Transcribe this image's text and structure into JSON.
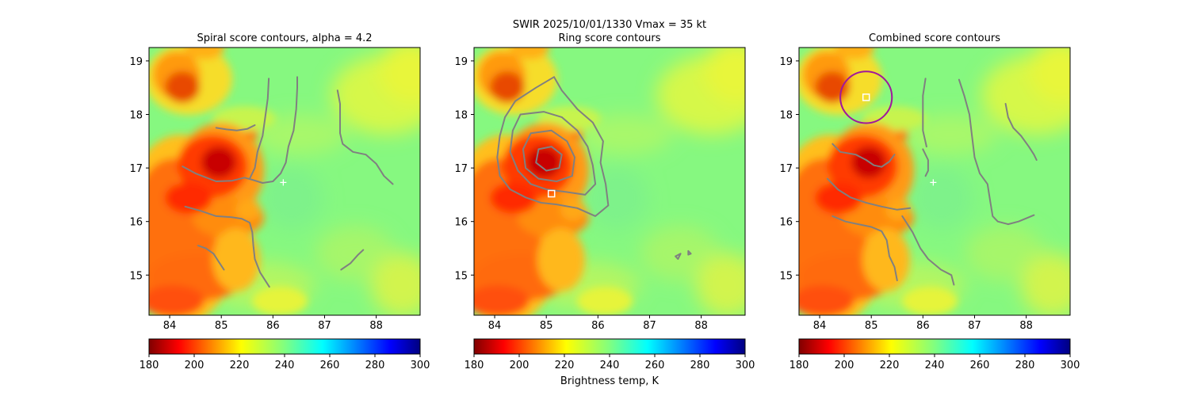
{
  "figure": {
    "suptitle_line": "SWIR  2025/10/01/1330    Vmax = 35 kt",
    "colorbar_label": "Brightness temp, K"
  },
  "chart_data": [
    {
      "type": "heatmap",
      "title": "Spiral score contours, alpha =  4.2",
      "xlim": [
        83.6,
        88.85
      ],
      "ylim": [
        14.25,
        19.25
      ],
      "xticks": [
        84,
        85,
        86,
        87,
        88
      ],
      "yticks": [
        15,
        16,
        17,
        18,
        19
      ],
      "grid": false,
      "colorbar": {
        "orientation": "horizontal",
        "range": [
          180,
          300
        ],
        "ticks": [
          180,
          200,
          220,
          240,
          260,
          280,
          300
        ],
        "colormap": "jet_r"
      },
      "markers": [
        {
          "shape": "plus",
          "lon": 86.2,
          "lat": 16.73,
          "color": "#ffffff"
        }
      ],
      "contours": [
        {
          "color": "#808080",
          "points": [
            [
              84.9,
              17.75
            ],
            [
              85.1,
              17.72
            ],
            [
              85.3,
              17.7
            ],
            [
              85.5,
              17.73
            ],
            [
              85.65,
              17.8
            ]
          ]
        },
        {
          "color": "#808080",
          "points": [
            [
              84.25,
              17.03
            ],
            [
              84.5,
              16.9
            ],
            [
              84.9,
              16.75
            ],
            [
              85.2,
              16.76
            ],
            [
              85.45,
              16.82
            ],
            [
              85.6,
              16.78
            ],
            [
              85.8,
              16.72
            ],
            [
              86.0,
              16.75
            ],
            [
              86.15,
              16.9
            ],
            [
              86.25,
              17.1
            ],
            [
              86.3,
              17.4
            ],
            [
              86.4,
              17.7
            ],
            [
              86.45,
              18.1
            ],
            [
              86.47,
              18.5
            ],
            [
              86.47,
              18.7
            ]
          ]
        },
        {
          "color": "#808080",
          "points": [
            [
              85.55,
              16.8
            ],
            [
              85.65,
              17.0
            ],
            [
              85.7,
              17.3
            ],
            [
              85.8,
              17.6
            ],
            [
              85.85,
              17.95
            ],
            [
              85.9,
              18.3
            ],
            [
              85.92,
              18.67
            ]
          ]
        },
        {
          "color": "#808080",
          "points": [
            [
              84.3,
              16.28
            ],
            [
              84.6,
              16.2
            ],
            [
              84.9,
              16.1
            ],
            [
              85.2,
              16.08
            ],
            [
              85.4,
              16.05
            ],
            [
              85.55,
              15.98
            ],
            [
              85.6,
              15.8
            ],
            [
              85.62,
              15.55
            ],
            [
              85.65,
              15.3
            ],
            [
              85.75,
              15.05
            ],
            [
              85.93,
              14.78
            ]
          ]
        },
        {
          "color": "#808080",
          "points": [
            [
              84.55,
              15.55
            ],
            [
              84.7,
              15.5
            ],
            [
              84.85,
              15.4
            ],
            [
              84.95,
              15.25
            ],
            [
              85.05,
              15.1
            ]
          ]
        },
        {
          "color": "#808080",
          "points": [
            [
              87.25,
              18.45
            ],
            [
              87.3,
              18.2
            ],
            [
              87.3,
              18.0
            ],
            [
              87.3,
              17.65
            ],
            [
              87.35,
              17.45
            ],
            [
              87.55,
              17.3
            ],
            [
              87.8,
              17.25
            ],
            [
              88.0,
              17.08
            ],
            [
              88.15,
              16.85
            ],
            [
              88.32,
              16.7
            ]
          ]
        },
        {
          "color": "#808080",
          "points": [
            [
              87.32,
              15.1
            ],
            [
              87.5,
              15.22
            ],
            [
              87.65,
              15.38
            ],
            [
              87.75,
              15.47
            ]
          ]
        }
      ]
    },
    {
      "type": "heatmap",
      "title": "Ring score contours",
      "xlim": [
        83.6,
        88.85
      ],
      "ylim": [
        14.25,
        19.25
      ],
      "xticks": [
        84,
        85,
        86,
        87,
        88
      ],
      "yticks": [
        15,
        16,
        17,
        18,
        19
      ],
      "grid": false,
      "colorbar": {
        "orientation": "horizontal",
        "range": [
          180,
          300
        ],
        "ticks": [
          180,
          200,
          220,
          240,
          260,
          280,
          300
        ],
        "colormap": "jet_r"
      },
      "markers": [
        {
          "shape": "square",
          "lon": 85.1,
          "lat": 16.52,
          "color": "#ffffff"
        }
      ],
      "contours": [
        {
          "color": "#808080",
          "points": [
            [
              85.15,
              18.7
            ],
            [
              84.8,
              18.5
            ],
            [
              84.4,
              18.25
            ],
            [
              84.2,
              17.95
            ],
            [
              84.1,
              17.6
            ],
            [
              84.05,
              17.2
            ],
            [
              84.1,
              16.85
            ],
            [
              84.3,
              16.6
            ],
            [
              84.6,
              16.45
            ],
            [
              84.9,
              16.35
            ],
            [
              85.2,
              16.32
            ],
            [
              85.6,
              16.25
            ],
            [
              85.95,
              16.1
            ],
            [
              86.2,
              16.3
            ],
            [
              86.15,
              16.7
            ],
            [
              86.05,
              17.1
            ],
            [
              86.1,
              17.5
            ],
            [
              85.9,
              17.85
            ],
            [
              85.6,
              18.1
            ],
            [
              85.3,
              18.45
            ],
            [
              85.15,
              18.7
            ]
          ]
        },
        {
          "color": "#808080",
          "points": [
            [
              84.5,
              18.0
            ],
            [
              84.35,
              17.7
            ],
            [
              84.3,
              17.3
            ],
            [
              84.45,
              16.95
            ],
            [
              84.7,
              16.7
            ],
            [
              85.0,
              16.6
            ],
            [
              85.4,
              16.55
            ],
            [
              85.75,
              16.5
            ],
            [
              85.95,
              16.7
            ],
            [
              85.9,
              17.05
            ],
            [
              85.8,
              17.4
            ],
            [
              85.6,
              17.7
            ],
            [
              85.3,
              17.95
            ],
            [
              84.95,
              18.05
            ],
            [
              84.5,
              18.0
            ]
          ]
        },
        {
          "color": "#808080",
          "points": [
            [
              84.7,
              17.65
            ],
            [
              84.55,
              17.35
            ],
            [
              84.6,
              17.0
            ],
            [
              84.85,
              16.8
            ],
            [
              85.2,
              16.75
            ],
            [
              85.5,
              16.85
            ],
            [
              85.55,
              17.2
            ],
            [
              85.4,
              17.5
            ],
            [
              85.1,
              17.7
            ],
            [
              84.7,
              17.65
            ]
          ]
        },
        {
          "color": "#808080",
          "points": [
            [
              84.85,
              17.35
            ],
            [
              84.8,
              17.1
            ],
            [
              85.0,
              16.95
            ],
            [
              85.25,
              17.0
            ],
            [
              85.3,
              17.25
            ],
            [
              85.1,
              17.4
            ],
            [
              84.85,
              17.35
            ]
          ]
        },
        {
          "color": "#808080",
          "points": [
            [
              87.5,
              15.35
            ],
            [
              87.6,
              15.4
            ],
            [
              87.55,
              15.3
            ],
            [
              87.5,
              15.35
            ]
          ]
        },
        {
          "color": "#808080",
          "points": [
            [
              87.75,
              15.45
            ],
            [
              87.8,
              15.4
            ],
            [
              87.75,
              15.38
            ],
            [
              87.75,
              15.45
            ]
          ]
        }
      ]
    },
    {
      "type": "heatmap",
      "title": "Combined score contours",
      "xlim": [
        83.6,
        88.85
      ],
      "ylim": [
        14.25,
        19.25
      ],
      "xticks": [
        84,
        85,
        86,
        87,
        88
      ],
      "yticks": [
        15,
        16,
        17,
        18,
        19
      ],
      "grid": false,
      "colorbar": {
        "orientation": "horizontal",
        "range": [
          180,
          300
        ],
        "ticks": [
          180,
          200,
          220,
          240,
          260,
          280,
          300
        ],
        "colormap": "jet_r"
      },
      "markers": [
        {
          "shape": "plus",
          "lon": 86.2,
          "lat": 16.73,
          "color": "#ffffff"
        },
        {
          "shape": "square",
          "lon": 84.9,
          "lat": 18.32,
          "color": "#ffffff"
        },
        {
          "shape": "circle",
          "lon": 84.9,
          "lat": 18.32,
          "radius_deg": 0.5,
          "color": "#a0189c"
        }
      ],
      "contours": [
        {
          "color": "#808080",
          "points": [
            [
              84.25,
              17.45
            ],
            [
              84.4,
              17.3
            ],
            [
              84.7,
              17.25
            ],
            [
              84.9,
              17.15
            ],
            [
              85.05,
              17.05
            ],
            [
              85.2,
              17.02
            ],
            [
              85.35,
              17.12
            ],
            [
              85.45,
              17.25
            ]
          ]
        },
        {
          "color": "#808080",
          "points": [
            [
              84.15,
              16.8
            ],
            [
              84.35,
              16.6
            ],
            [
              84.6,
              16.45
            ],
            [
              84.9,
              16.35
            ],
            [
              85.2,
              16.28
            ],
            [
              85.5,
              16.22
            ],
            [
              85.75,
              16.25
            ]
          ]
        },
        {
          "color": "#808080",
          "points": [
            [
              84.25,
              16.1
            ],
            [
              84.5,
              16.0
            ],
            [
              84.75,
              15.95
            ],
            [
              85.0,
              15.9
            ],
            [
              85.2,
              15.82
            ],
            [
              85.3,
              15.65
            ],
            [
              85.35,
              15.35
            ],
            [
              85.45,
              15.15
            ],
            [
              85.5,
              14.9
            ]
          ]
        },
        {
          "color": "#808080",
          "points": [
            [
              85.6,
              16.1
            ],
            [
              85.8,
              15.8
            ],
            [
              85.95,
              15.5
            ],
            [
              86.1,
              15.3
            ],
            [
              86.35,
              15.1
            ],
            [
              86.55,
              15.0
            ],
            [
              86.6,
              14.82
            ]
          ]
        },
        {
          "color": "#808080",
          "points": [
            [
              86.0,
              17.35
            ],
            [
              86.1,
              17.15
            ],
            [
              86.1,
              16.95
            ],
            [
              86.05,
              16.85
            ]
          ]
        },
        {
          "color": "#808080",
          "points": [
            [
              86.07,
              17.4
            ],
            [
              86.0,
              17.7
            ],
            [
              86.0,
              18.0
            ],
            [
              86.0,
              18.35
            ],
            [
              86.05,
              18.67
            ]
          ]
        },
        {
          "color": "#808080",
          "points": [
            [
              86.7,
              18.65
            ],
            [
              86.8,
              18.35
            ],
            [
              86.9,
              18.0
            ],
            [
              86.95,
              17.6
            ],
            [
              87.0,
              17.2
            ],
            [
              87.1,
              16.9
            ],
            [
              87.25,
              16.7
            ],
            [
              87.3,
              16.4
            ],
            [
              87.35,
              16.1
            ],
            [
              87.45,
              16.0
            ],
            [
              87.65,
              15.95
            ],
            [
              87.85,
              16.0
            ],
            [
              88.05,
              16.08
            ],
            [
              88.15,
              16.12
            ]
          ]
        },
        {
          "color": "#808080",
          "points": [
            [
              87.6,
              18.2
            ],
            [
              87.65,
              17.95
            ],
            [
              87.75,
              17.75
            ],
            [
              87.9,
              17.6
            ],
            [
              88.05,
              17.4
            ],
            [
              88.15,
              17.25
            ],
            [
              88.2,
              17.15
            ]
          ]
        }
      ]
    }
  ]
}
